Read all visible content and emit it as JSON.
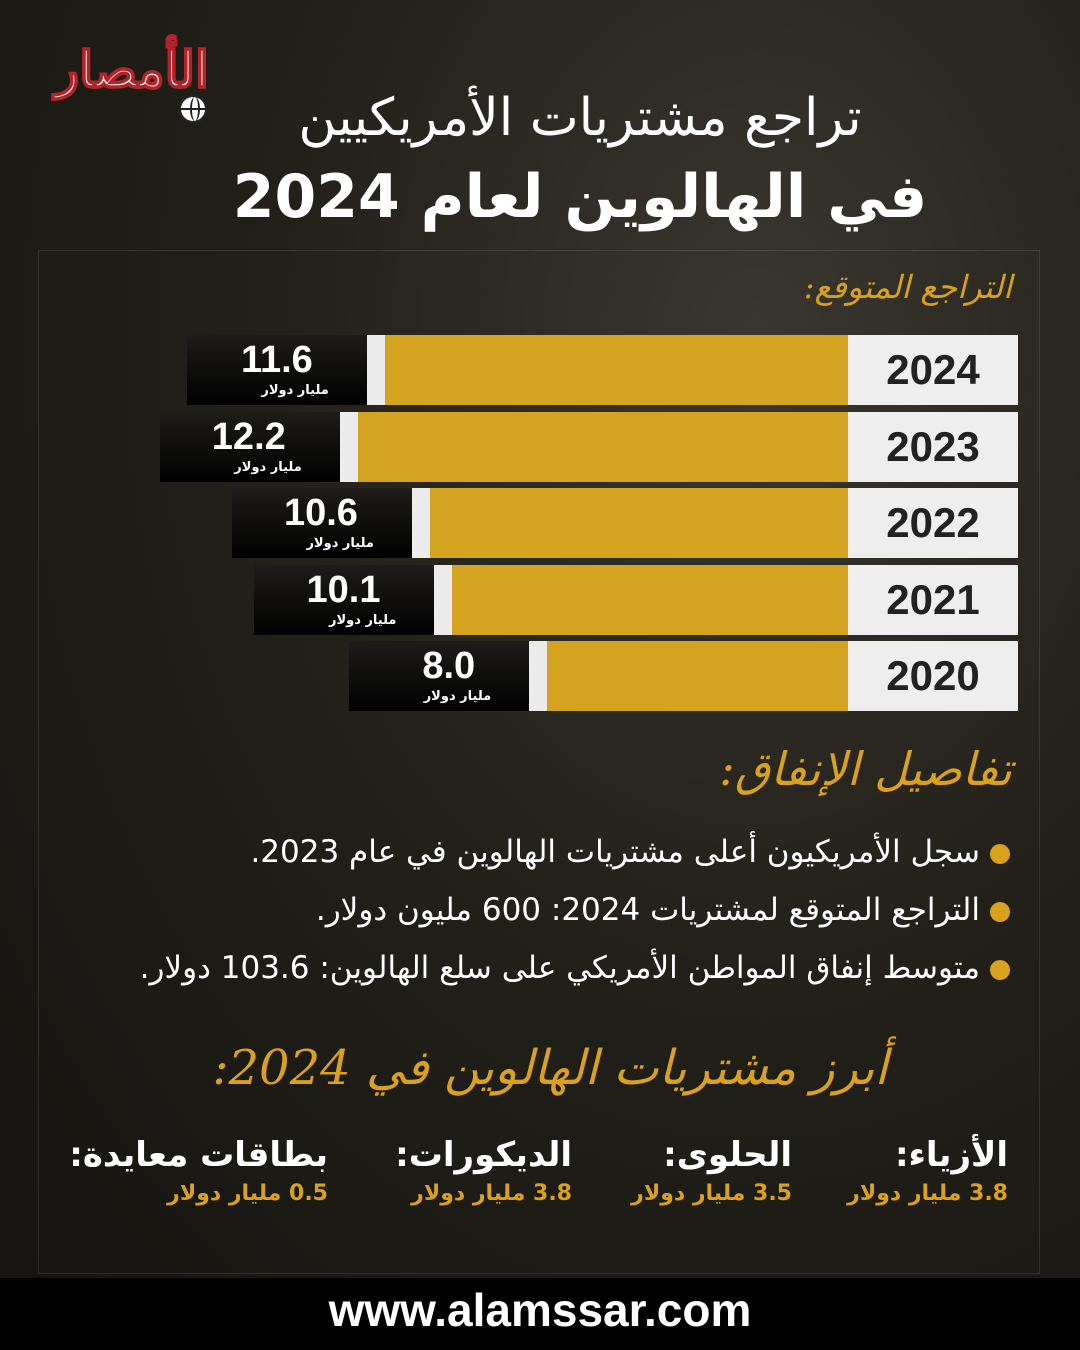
{
  "logo": {
    "text": "الأمصار"
  },
  "title": {
    "line1": "تراجع مشتريات الأمريكيين",
    "line2": "في الهالوين لعام 2024"
  },
  "expected_label": "التراجع المتوقع:",
  "chart_data": {
    "type": "bar",
    "orientation": "horizontal",
    "categories": [
      "2024",
      "2023",
      "2022",
      "2021",
      "2020"
    ],
    "values": [
      11.6,
      12.2,
      10.6,
      10.1,
      8.0
    ],
    "value_labels": [
      "11.6",
      "12.2",
      "10.6",
      "10.1",
      "8.0"
    ],
    "unit": "مليار دولار",
    "colors": {
      "bar": "#d4a31f",
      "year_box": "#eeeeee",
      "value_box": "#000000"
    }
  },
  "details": {
    "heading": "تفاصيل الإنفاق:",
    "items": [
      "سجل الأمريكيون أعلى مشتريات الهالوين في عام 2023.",
      "التراجع المتوقع لمشتريات 2024: 600 مليون دولار.",
      "متوسط إنفاق المواطن الأمريكي على سلع الهالوين: 103.6 دولار."
    ]
  },
  "top_purchases": {
    "heading": "أبرز مشتريات الهالوين في 2024:",
    "items": [
      {
        "label": "الأزياء:",
        "value": "3.8 مليار دولار"
      },
      {
        "label": "الحلوى:",
        "value": "3.5 مليار دولار"
      },
      {
        "label": "الديكورات:",
        "value": "3.8 مليار دولار"
      },
      {
        "label": "بطاقات معايدة:",
        "value": "0.5 مليار دولار"
      }
    ]
  },
  "footer": {
    "url": "www.alamssar.com"
  },
  "accent_color": "#d9a11c"
}
